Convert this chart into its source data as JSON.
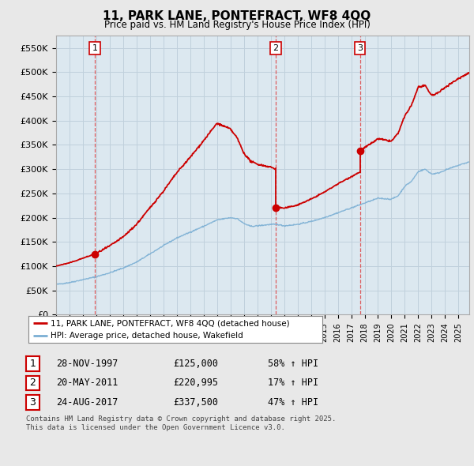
{
  "title": "11, PARK LANE, PONTEFRACT, WF8 4QQ",
  "subtitle": "Price paid vs. HM Land Registry's House Price Index (HPI)",
  "ylim": [
    0,
    575000
  ],
  "yticks": [
    0,
    50000,
    100000,
    150000,
    200000,
    250000,
    300000,
    350000,
    400000,
    450000,
    500000,
    550000
  ],
  "ytick_labels": [
    "£0",
    "£50K",
    "£100K",
    "£150K",
    "£200K",
    "£250K",
    "£300K",
    "£350K",
    "£400K",
    "£450K",
    "£500K",
    "£550K"
  ],
  "xlim_start": 1995.0,
  "xlim_end": 2025.8,
  "legend1_label": "11, PARK LANE, PONTEFRACT, WF8 4QQ (detached house)",
  "legend2_label": "HPI: Average price, detached house, Wakefield",
  "line_color_red": "#cc0000",
  "line_color_blue": "#7bafd4",
  "vline_color": "#dd4444",
  "sale1_date": 1997.91,
  "sale1_price": 125000,
  "sale2_date": 2011.38,
  "sale2_price": 220995,
  "sale3_date": 2017.65,
  "sale3_price": 337500,
  "table_rows": [
    {
      "num": "1",
      "date": "28-NOV-1997",
      "price": "£125,000",
      "change": "58% ↑ HPI"
    },
    {
      "num": "2",
      "date": "20-MAY-2011",
      "price": "£220,995",
      "change": "17% ↑ HPI"
    },
    {
      "num": "3",
      "date": "24-AUG-2017",
      "price": "£337,500",
      "change": "47% ↑ HPI"
    }
  ],
  "footer": "Contains HM Land Registry data © Crown copyright and database right 2025.\nThis data is licensed under the Open Government Licence v3.0.",
  "bg_color": "#e8e8e8",
  "plot_bg_color": "#dce8f0",
  "grid_color": "#c0d0dc"
}
